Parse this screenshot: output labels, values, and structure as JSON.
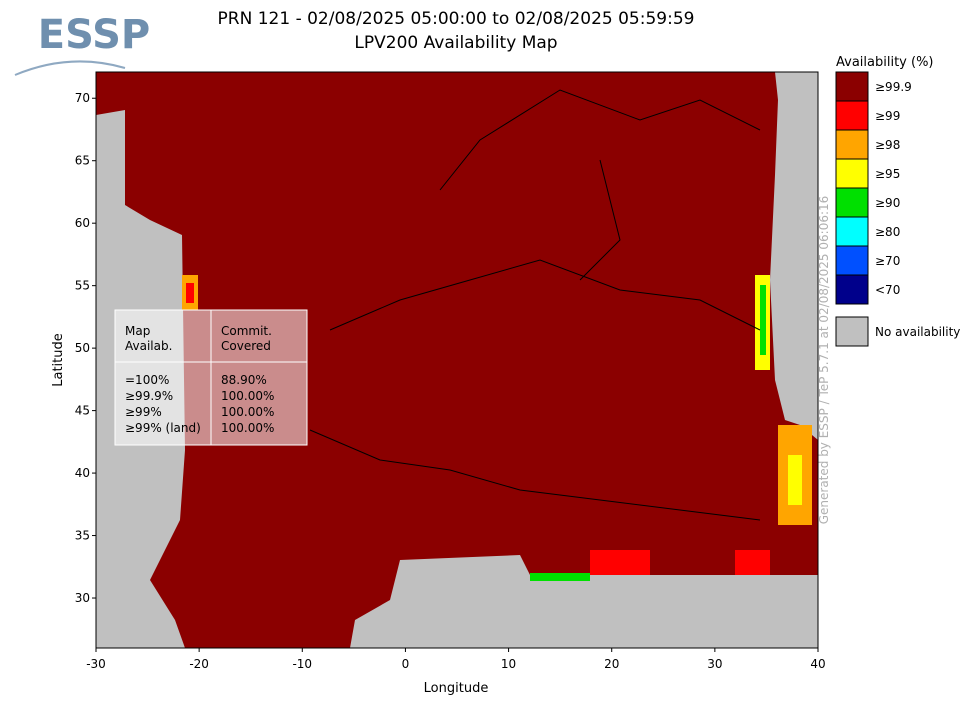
{
  "header": {
    "logo": "ESSP",
    "title": "PRN 121 - 02/08/2025 05:00:00 to 02/08/2025 05:59:59",
    "subtitle": "LPV200 Availability Map"
  },
  "map": {
    "xlabel": "Longitude",
    "ylabel": "Latitude",
    "xlim": [
      -30,
      40
    ],
    "ylim": [
      26,
      72.1
    ],
    "xticks": [
      -30,
      -20,
      -10,
      0,
      10,
      20,
      30,
      40
    ],
    "yticks": [
      30,
      35,
      40,
      45,
      50,
      55,
      60,
      65,
      70
    ]
  },
  "legend": {
    "title": "Availability (%)",
    "items": [
      {
        "label": "≥99.9",
        "color": "#8b0000"
      },
      {
        "label": "≥99",
        "color": "#ff0000"
      },
      {
        "label": "≥98",
        "color": "#ffa500"
      },
      {
        "label": "≥95",
        "color": "#ffff00"
      },
      {
        "label": "≥90",
        "color": "#00e000"
      },
      {
        "label": "≥80",
        "color": "#00ffff"
      },
      {
        "label": "≥70",
        "color": "#0050ff"
      },
      {
        "label": "<70",
        "color": "#00008b"
      }
    ],
    "none": {
      "label": "No availability",
      "color": "#c0c0c0"
    }
  },
  "table": {
    "headers": [
      "Map\nAvailab.",
      "Commit.\nCovered"
    ],
    "rows": [
      [
        "=100%",
        "88.90%"
      ],
      [
        "≥99.9%",
        "100.00%"
      ],
      [
        "≥99%",
        "100.00%"
      ],
      [
        "≥99% (land)",
        "100.00%"
      ]
    ]
  },
  "footer": {
    "watermark": "Generated by ESSP / TeP 5.7.1 at 02/08/2025 06:06:16"
  }
}
